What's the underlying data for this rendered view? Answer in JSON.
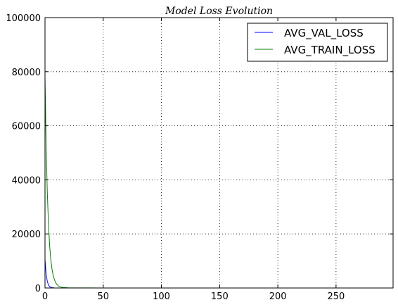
{
  "chart_data": {
    "type": "line",
    "title": "Model Loss Evolution",
    "xlabel": "",
    "ylabel": "",
    "xlim": [
      0,
      299
    ],
    "ylim": [
      0,
      100000
    ],
    "x_ticks": [
      0,
      50,
      100,
      150,
      200,
      250
    ],
    "y_ticks": [
      0,
      20000,
      40000,
      60000,
      80000,
      100000
    ],
    "grid": true,
    "legend_position": "top-right",
    "series": [
      {
        "name": "AVG_VAL_LOSS",
        "color": "#0000ff",
        "x": [
          0,
          1,
          2,
          3,
          4,
          5,
          6,
          8,
          10,
          15,
          20,
          50,
          100,
          150,
          200,
          250,
          299
        ],
        "values": [
          10500,
          5000,
          2400,
          1100,
          500,
          250,
          120,
          40,
          15,
          5,
          3,
          2,
          2,
          2,
          2,
          2,
          2
        ]
      },
      {
        "name": "AVG_TRAIN_LOSS",
        "color": "#008000",
        "x": [
          0,
          1,
          2,
          3,
          4,
          5,
          6,
          7,
          8,
          9,
          10,
          12,
          15,
          20,
          50,
          100,
          150,
          200,
          250,
          299
        ],
        "values": [
          78000,
          52000,
          35000,
          23500,
          15500,
          10500,
          7000,
          4700,
          3200,
          2100,
          1400,
          600,
          200,
          50,
          10,
          5,
          5,
          5,
          5,
          5
        ]
      }
    ]
  }
}
